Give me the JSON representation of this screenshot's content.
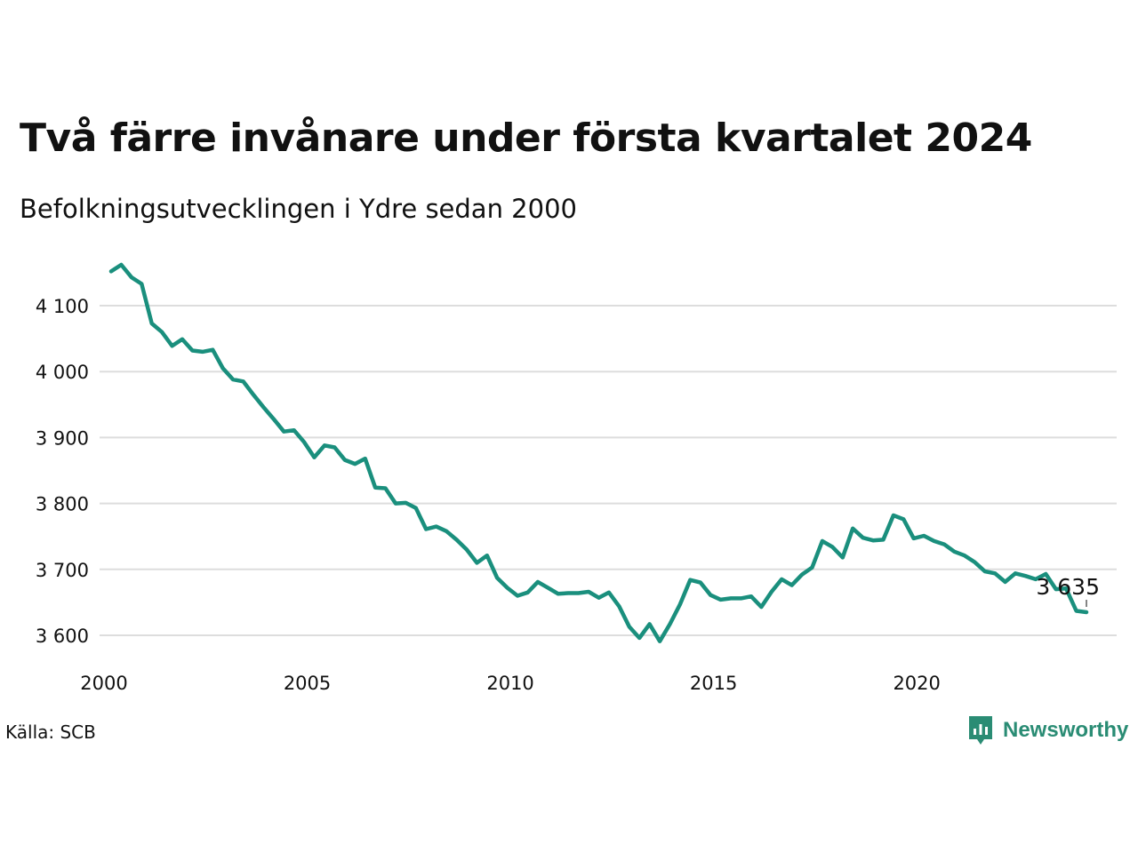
{
  "title": "Två färre invånare under första kvartalet 2024",
  "subtitle": "Befolkningsutvecklingen i Ydre sedan 2000",
  "source": "Källa: SCB",
  "brand": {
    "name": "Newsworthy",
    "icon": "bar-chart-speech-bubble-icon",
    "color": "#2a8c74"
  },
  "chart_data": {
    "type": "line",
    "line_color": "#1a8f7d",
    "grid": true,
    "xlim": [
      2000,
      2024.25
    ],
    "ylim": [
      3590,
      4165
    ],
    "x_ticks": [
      {
        "value": 2000,
        "label": "2000"
      },
      {
        "value": 2005,
        "label": "2005"
      },
      {
        "value": 2010,
        "label": "2010"
      },
      {
        "value": 2015,
        "label": "2015"
      },
      {
        "value": 2020,
        "label": "2020"
      }
    ],
    "y_ticks": [
      {
        "value": 3600,
        "label": "3 600"
      },
      {
        "value": 3700,
        "label": "3 700"
      },
      {
        "value": 3800,
        "label": "3 800"
      },
      {
        "value": 3900,
        "label": "3 900"
      },
      {
        "value": 4000,
        "label": "4 000"
      },
      {
        "value": 4100,
        "label": "4 100"
      }
    ],
    "series": [
      {
        "x": [
          2000.0,
          2000.25,
          2000.5,
          2000.75,
          2001.0,
          2001.25,
          2001.5,
          2001.75,
          2002.0,
          2002.25,
          2002.5,
          2002.75,
          2003.0,
          2003.25,
          2003.5,
          2003.75,
          2004.0,
          2004.25,
          2004.5,
          2004.75,
          2005.0,
          2005.25,
          2005.5,
          2005.75,
          2006.0,
          2006.25,
          2006.5,
          2006.75,
          2007.0,
          2007.25,
          2007.5,
          2007.75,
          2008.0,
          2008.25,
          2008.5,
          2008.75,
          2009.0,
          2009.25,
          2009.5,
          2009.75,
          2010.0,
          2010.25,
          2010.5,
          2010.75,
          2011.0,
          2011.25,
          2011.5,
          2011.75,
          2012.0,
          2012.25,
          2012.5,
          2012.75,
          2013.0,
          2013.25,
          2013.5,
          2013.75,
          2014.0,
          2014.25,
          2014.5,
          2014.75,
          2015.0,
          2015.25,
          2015.5,
          2015.75,
          2016.0,
          2016.25,
          2016.5,
          2016.75,
          2017.0,
          2017.25,
          2017.5,
          2017.75,
          2018.0,
          2018.25,
          2018.5,
          2018.75,
          2019.0,
          2019.25,
          2019.5,
          2019.75,
          2020.0,
          2020.25,
          2020.5,
          2020.75,
          2021.0,
          2021.25,
          2021.5,
          2021.75,
          2022.0,
          2022.25,
          2022.5,
          2022.75,
          2023.0,
          2023.25,
          2023.5,
          2023.75,
          2024.0
        ],
        "y": [
          4152,
          4162,
          4143,
          4133,
          4073,
          4060,
          4039,
          4049,
          4032,
          4030,
          4033,
          4005,
          3988,
          3985,
          3965,
          3946,
          3928,
          3909,
          3911,
          3893,
          3870,
          3888,
          3885,
          3866,
          3860,
          3868,
          3824,
          3823,
          3800,
          3801,
          3793,
          3761,
          3765,
          3758,
          3745,
          3730,
          3710,
          3721,
          3687,
          3672,
          3660,
          3665,
          3681,
          3672,
          3663,
          3664,
          3664,
          3666,
          3657,
          3665,
          3644,
          3613,
          3596,
          3617,
          3591,
          3617,
          3647,
          3684,
          3680,
          3661,
          3654,
          3656,
          3656,
          3659,
          3643,
          3666,
          3685,
          3676,
          3692,
          3703,
          3743,
          3734,
          3718,
          3762,
          3748,
          3744,
          3745,
          3782,
          3776,
          3747,
          3751,
          3743,
          3738,
          3727,
          3721,
          3711,
          3697,
          3694,
          3681,
          3694,
          3690,
          3685,
          3693,
          3670,
          3671,
          3637,
          3635
        ]
      }
    ],
    "annotations": [
      {
        "x": 2024.0,
        "y": 3635,
        "label": "3 635"
      }
    ]
  }
}
